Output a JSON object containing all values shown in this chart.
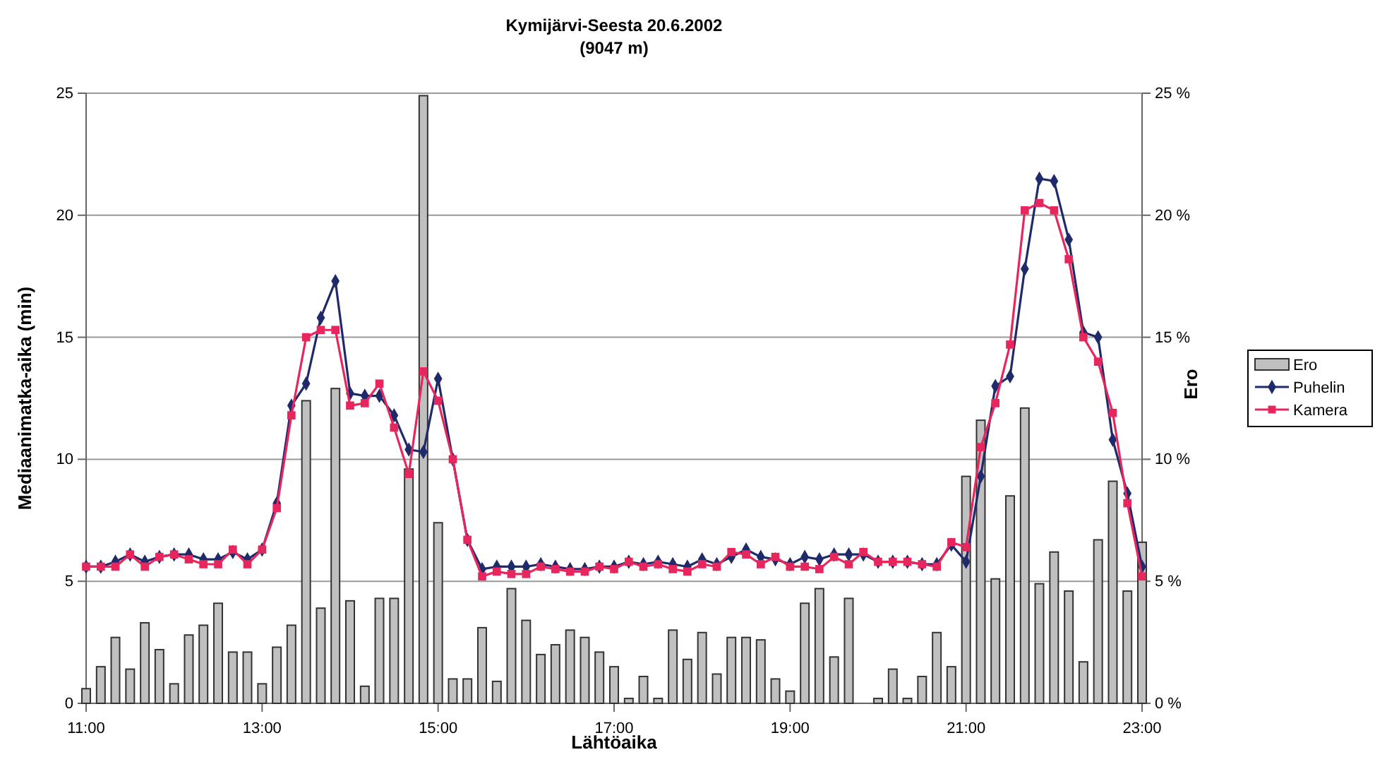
{
  "chart_data": {
    "type": "line",
    "title": "Kymijärvi-Seesta 20.6.2002",
    "subtitle": "(9047 m)",
    "xlabel": "Lähtöaika",
    "ylabel": "Mediaanimatka-aika (min)",
    "y2label": "Ero",
    "x": [
      11,
      11.167,
      11.333,
      11.5,
      11.667,
      11.833,
      12,
      12.167,
      12.333,
      12.5,
      12.667,
      12.833,
      13,
      13.167,
      13.333,
      13.5,
      13.667,
      13.833,
      14,
      14.167,
      14.333,
      14.5,
      14.667,
      14.833,
      15,
      15.167,
      15.333,
      15.5,
      15.667,
      15.833,
      16,
      16.167,
      16.333,
      16.5,
      16.667,
      16.833,
      17,
      17.167,
      17.333,
      17.5,
      17.667,
      17.833,
      18,
      18.167,
      18.333,
      18.5,
      18.667,
      18.833,
      19,
      19.167,
      19.333,
      19.5,
      19.667,
      19.833,
      20,
      20.167,
      20.333,
      20.5,
      20.667,
      20.833,
      21,
      21.167,
      21.333,
      21.5,
      21.667,
      21.833,
      22,
      22.167,
      22.333,
      22.5,
      22.667,
      22.833,
      23
    ],
    "series": [
      {
        "name": "Ero",
        "type": "bar",
        "axis": "y2",
        "color": "#c0c0c0",
        "values": [
          0.6,
          1.5,
          2.7,
          1.4,
          3.3,
          2.2,
          0.8,
          2.8,
          3.2,
          4.1,
          2.1,
          2.1,
          0.8,
          2.3,
          3.2,
          12.4,
          3.9,
          12.9,
          4.2,
          0.7,
          4.3,
          4.3,
          9.6,
          24.9,
          7.4,
          1.0,
          1.0,
          3.1,
          0.9,
          4.7,
          3.4,
          2.0,
          2.4,
          3.0,
          2.7,
          2.1,
          1.5,
          0.2,
          1.1,
          0.2,
          3.0,
          1.8,
          2.9,
          1.2,
          2.7,
          2.7,
          2.6,
          1.0,
          0.5,
          4.1,
          4.7,
          1.9,
          4.3,
          null,
          0.2,
          1.4,
          0.2,
          1.1,
          2.9,
          1.5,
          9.3,
          11.6,
          5.1,
          8.5,
          12.1,
          4.9,
          6.2,
          4.6,
          1.7,
          6.7,
          9.1,
          4.6,
          6.6
        ]
      },
      {
        "name": "Puhelin",
        "marker": "diamond",
        "color": "#1f2a6b",
        "values": [
          5.6,
          5.6,
          5.8,
          6.1,
          5.8,
          6.0,
          6.1,
          6.1,
          5.9,
          5.9,
          6.2,
          5.9,
          6.3,
          8.2,
          12.2,
          13.1,
          15.8,
          17.3,
          12.7,
          12.6,
          12.6,
          11.8,
          10.4,
          10.3,
          13.3,
          10.0,
          6.7,
          5.5,
          5.6,
          5.6,
          5.6,
          5.7,
          5.6,
          5.5,
          5.5,
          5.6,
          5.6,
          5.8,
          5.7,
          5.8,
          5.7,
          5.6,
          5.9,
          5.7,
          6.0,
          6.3,
          6.0,
          5.9,
          5.7,
          6.0,
          5.9,
          6.1,
          6.1,
          6.1,
          5.8,
          5.8,
          5.8,
          5.7,
          5.7,
          6.5,
          5.8,
          9.3,
          13.0,
          13.4,
          17.8,
          21.5,
          21.4,
          19.0,
          15.2,
          15.0,
          10.8,
          8.6,
          5.6
        ]
      },
      {
        "name": "Kamera",
        "marker": "square",
        "color": "#e8265e",
        "values": [
          5.6,
          5.6,
          5.6,
          6.1,
          5.6,
          6.0,
          6.1,
          5.9,
          5.7,
          5.7,
          6.3,
          5.7,
          6.3,
          8.0,
          11.8,
          15.0,
          15.3,
          15.3,
          12.2,
          12.3,
          13.1,
          11.3,
          9.4,
          13.6,
          12.4,
          10.0,
          6.7,
          5.2,
          5.4,
          5.3,
          5.3,
          5.6,
          5.5,
          5.4,
          5.4,
          5.6,
          5.5,
          5.8,
          5.6,
          5.7,
          5.5,
          5.4,
          5.7,
          5.6,
          6.2,
          6.1,
          5.7,
          6.0,
          5.6,
          5.6,
          5.5,
          6.0,
          5.7,
          6.2,
          5.8,
          5.8,
          5.8,
          5.7,
          5.6,
          6.6,
          6.4,
          10.5,
          12.3,
          14.7,
          20.2,
          20.5,
          20.2,
          18.2,
          15.0,
          14.0,
          11.9,
          8.2,
          5.2
        ]
      }
    ],
    "xlim": [
      11,
      23
    ],
    "xticks": [
      {
        "value": 11,
        "label": "11:00"
      },
      {
        "value": 13,
        "label": "13:00"
      },
      {
        "value": 15,
        "label": "15:00"
      },
      {
        "value": 17,
        "label": "17:00"
      },
      {
        "value": 19,
        "label": "19:00"
      },
      {
        "value": 21,
        "label": "21:00"
      },
      {
        "value": 23,
        "label": "23:00"
      }
    ],
    "ylim": [
      0,
      25
    ],
    "yticks": [
      0,
      5,
      10,
      15,
      20,
      25
    ],
    "y2lim": [
      0,
      25
    ],
    "y2ticks": [
      {
        "value": 0,
        "label": "0 %"
      },
      {
        "value": 5,
        "label": "5 %"
      },
      {
        "value": 10,
        "label": "10 %"
      },
      {
        "value": 15,
        "label": "15 %"
      },
      {
        "value": 20,
        "label": "20 %"
      },
      {
        "value": 25,
        "label": "25 %"
      }
    ],
    "grid": "y",
    "legend": "right"
  }
}
